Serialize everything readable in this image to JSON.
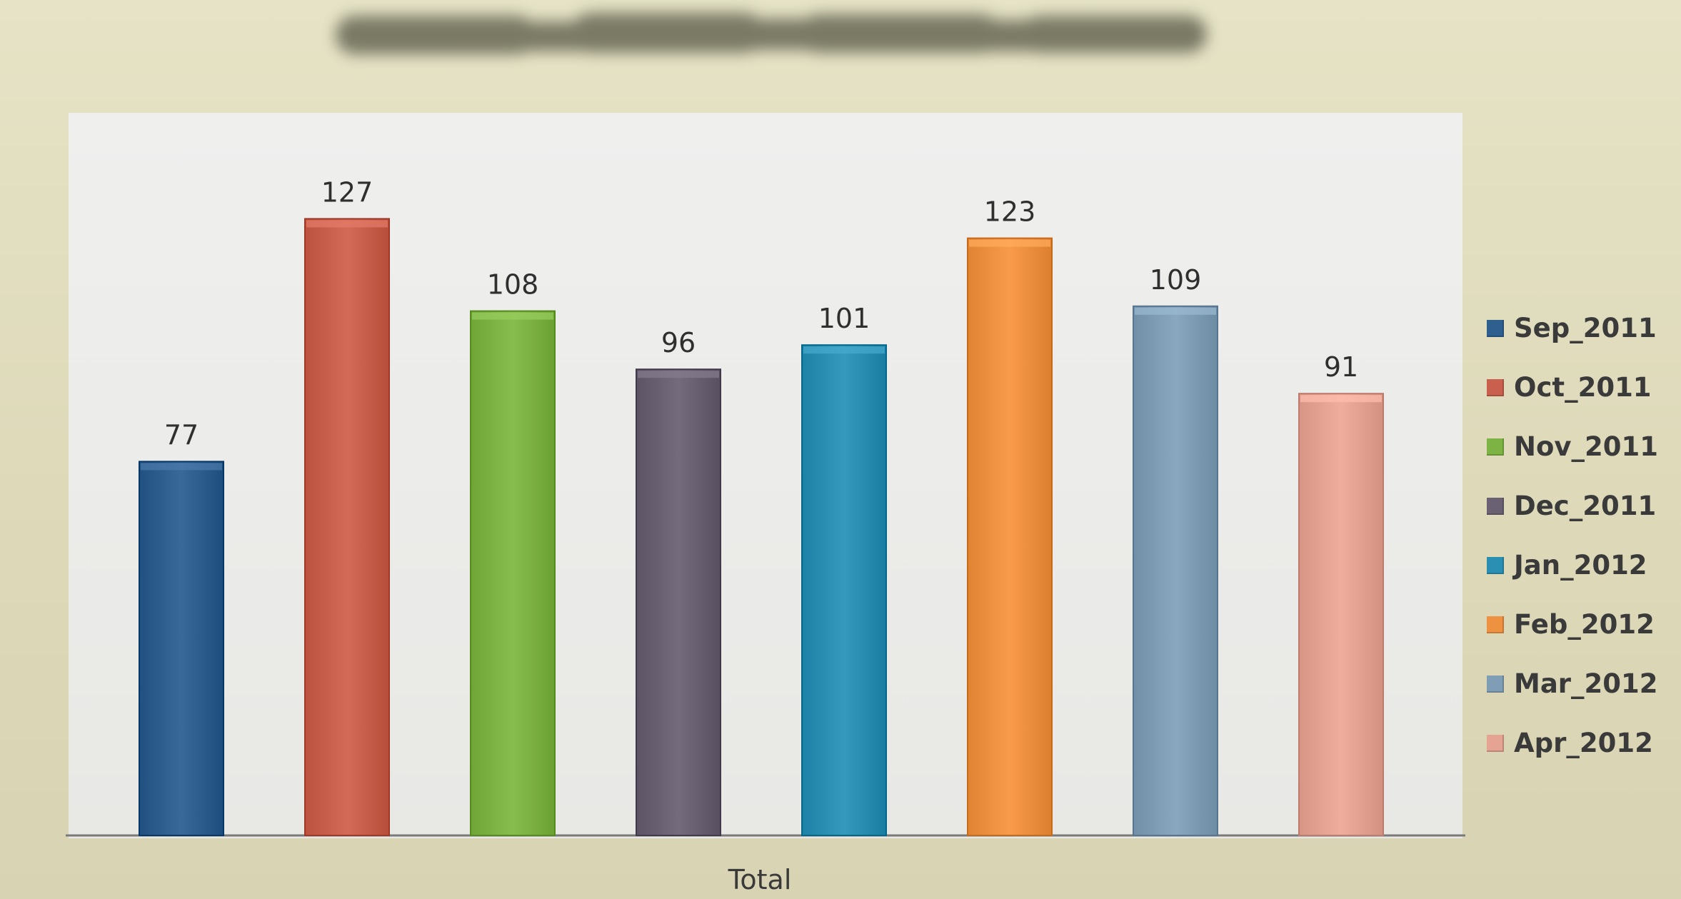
{
  "chart_data": {
    "type": "bar",
    "categories": [
      "Sep_2011",
      "Oct_2011",
      "Nov_2011",
      "Dec_2011",
      "Jan_2012",
      "Feb_2012",
      "Mar_2012",
      "Apr_2012"
    ],
    "values": [
      77,
      127,
      108,
      96,
      101,
      123,
      109,
      91
    ],
    "title": "",
    "xlabel": "Total",
    "ylabel": "",
    "ylim": [
      0,
      160
    ],
    "grid": false,
    "legend_position": "right",
    "colors": [
      "#2f5f8f",
      "#c9604d",
      "#7db244",
      "#6a6272",
      "#2b8fb3",
      "#ee9141",
      "#7f9eb6",
      "#e5a393"
    ]
  },
  "legend": {
    "items": [
      {
        "label": "Sep_2011"
      },
      {
        "label": "Oct_2011"
      },
      {
        "label": "Nov_2011"
      },
      {
        "label": "Dec_2011"
      },
      {
        "label": "Jan_2012"
      },
      {
        "label": "Feb_2012"
      },
      {
        "label": "Mar_2012"
      },
      {
        "label": "Apr_2012"
      }
    ]
  },
  "axis": {
    "xlabel": "Total"
  }
}
